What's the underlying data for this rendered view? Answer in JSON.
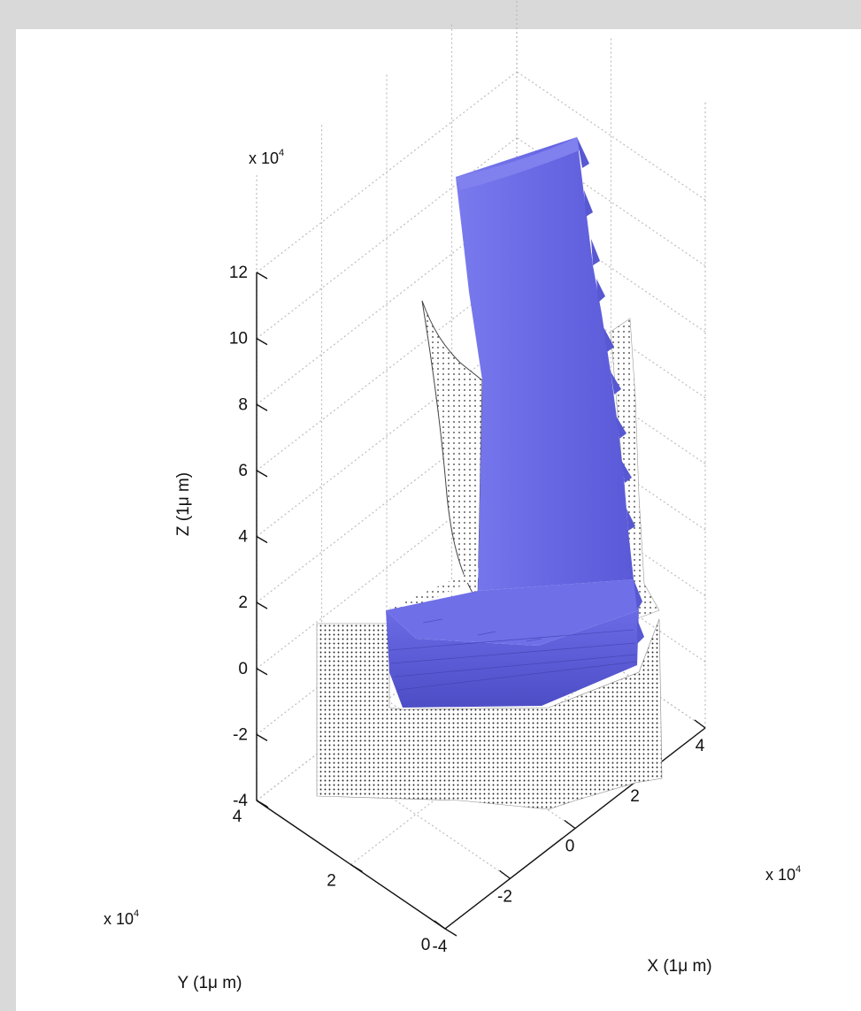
{
  "chart_data": {
    "type": "scatter",
    "projection": "3d",
    "xlabel": "X (1μ m)",
    "ylabel": "Y (1μ m)",
    "zlabel": "Z (1μ m)",
    "x_multiplier": "x 10",
    "y_multiplier": "x 10",
    "z_multiplier": "x 10",
    "multiplier_exponent": "4",
    "x_ticks": [
      "-4",
      "-2",
      "0",
      "2",
      "4"
    ],
    "y_ticks": [
      "0",
      "2",
      "4"
    ],
    "z_ticks": [
      "-4",
      "-2",
      "0",
      "2",
      "4",
      "6",
      "8",
      "10",
      "12"
    ],
    "xlim": [
      -4,
      4
    ],
    "ylim": [
      0,
      4
    ],
    "zlim": [
      -4,
      12
    ],
    "grid": true,
    "colors": {
      "surface": "#6b6be6",
      "surface_dark": "#4c4cc4",
      "surface_light": "#8c8cf0",
      "point_cloud": "#222222",
      "grid": "#bdbdbd",
      "background": "#ffffff",
      "frame": "#d9d9d9"
    },
    "series": [
      {
        "style": "dotted point cloud"
      },
      {
        "style": "blue surface"
      }
    ]
  }
}
